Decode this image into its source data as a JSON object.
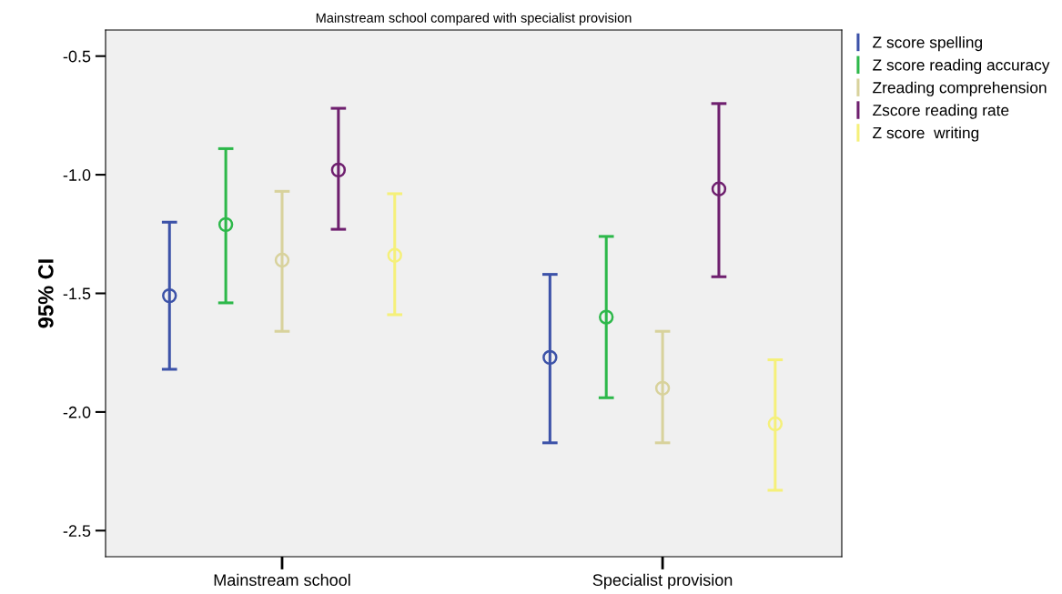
{
  "chart_data": {
    "type": "scatter",
    "title": "Mainstream school compared with specialist provision",
    "ylabel": "95% CI",
    "categories": [
      "Mainstream school",
      "Specialist provision"
    ],
    "series": [
      {
        "name": "Z score spelling",
        "color": "#3c52a8",
        "values": [
          -1.51,
          -1.77
        ],
        "errors": [
          [
            -1.82,
            -1.2
          ],
          [
            -2.13,
            -1.42
          ]
        ]
      },
      {
        "name": "Z score reading accuracy",
        "color": "#2db84a",
        "values": [
          -1.21,
          -1.6
        ],
        "errors": [
          [
            -1.54,
            -0.89
          ],
          [
            -1.94,
            -1.26
          ]
        ]
      },
      {
        "name": "Zreading comprehension",
        "color": "#d8d29c",
        "values": [
          -1.36,
          -1.9
        ],
        "errors": [
          [
            -1.66,
            -1.07
          ],
          [
            -2.13,
            -1.66
          ]
        ]
      },
      {
        "name": "Zscore reading rate",
        "color": "#6e1f6e",
        "values": [
          -0.98,
          -1.06
        ],
        "errors": [
          [
            -1.23,
            -0.72
          ],
          [
            -1.43,
            -0.7
          ]
        ]
      },
      {
        "name": "Z score  writing",
        "color": "#f5f07a",
        "values": [
          -1.34,
          -2.05
        ],
        "errors": [
          [
            -1.59,
            -1.08
          ],
          [
            -2.33,
            -1.78
          ]
        ]
      }
    ],
    "ylim": [
      -2.61,
      -0.39
    ],
    "yticks": [
      {
        "value": -2.5,
        "label": "-2.5"
      },
      {
        "value": -2.0,
        "label": "-2.0"
      },
      {
        "value": -1.5,
        "label": "-1.5"
      },
      {
        "value": -1.0,
        "label": "-1.0"
      },
      {
        "value": -0.5,
        "label": "-0.5"
      }
    ],
    "marker": "circle",
    "legend": "right",
    "grid": false
  }
}
